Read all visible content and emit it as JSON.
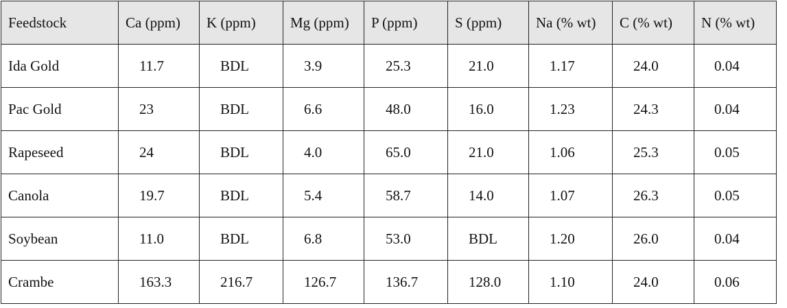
{
  "table": {
    "headers": [
      "Feedstock",
      "Ca (ppm)",
      "K (ppm)",
      "Mg (ppm)",
      "P (ppm)",
      "S (ppm)",
      "Na (% wt)",
      "C (% wt)",
      "N (% wt)"
    ],
    "rows": [
      [
        "Ida Gold",
        "11.7",
        "BDL",
        "3.9",
        "25.3",
        "21.0",
        "1.17",
        "24.0",
        "0.04"
      ],
      [
        "Pac Gold",
        "23",
        "BDL",
        "6.6",
        "48.0",
        "16.0",
        "1.23",
        "24.3",
        "0.04"
      ],
      [
        "Rapeseed",
        "24",
        "BDL",
        "4.0",
        "65.0",
        "21.0",
        "1.06",
        "25.3",
        "0.05"
      ],
      [
        "Canola",
        "19.7",
        "BDL",
        "5.4",
        "58.7",
        "14.0",
        "1.07",
        "26.3",
        "0.05"
      ],
      [
        "Soybean",
        "11.0",
        "BDL",
        "6.8",
        "53.0",
        "BDL",
        "1.20",
        "26.0",
        "0.04"
      ],
      [
        "Crambe",
        "163.3",
        "216.7",
        "126.7",
        "136.7",
        "128.0",
        "1.10",
        "24.0",
        "0.06"
      ]
    ]
  },
  "colors": {
    "header_background": "#e6e6e6",
    "border": "#222222",
    "text": "#111111"
  }
}
